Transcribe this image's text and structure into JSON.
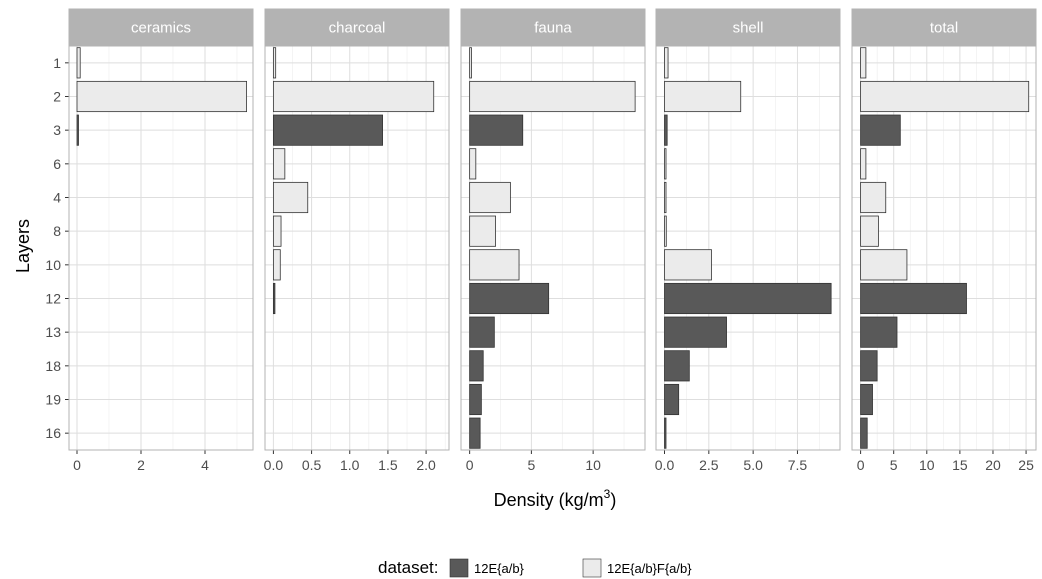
{
  "chart_data": {
    "type": "bar",
    "orientation": "horizontal",
    "ylabel": "Layers",
    "xlabel_parts": {
      "main": "Density (kg/m",
      "sup": "3",
      "end": ")"
    },
    "categories": [
      "1",
      "2",
      "3",
      "6",
      "4",
      "8",
      "10",
      "12",
      "13",
      "18",
      "19",
      "16"
    ],
    "legend": {
      "title": "dataset:",
      "placement": "bottom",
      "entries": [
        {
          "label": "12E{a/b}",
          "color": "#595959"
        },
        {
          "label": "12E{a/b}F{a/b}",
          "color": "#ebebeb"
        }
      ]
    },
    "series_by_category": [
      "12E{a/b}F{a/b}",
      "12E{a/b}F{a/b}",
      "12E{a/b}",
      "12E{a/b}F{a/b}",
      "12E{a/b}F{a/b}",
      "12E{a/b}F{a/b}",
      "12E{a/b}F{a/b}",
      "12E{a/b}",
      "12E{a/b}",
      "12E{a/b}",
      "12E{a/b}",
      "12E{a/b}"
    ],
    "grid": true,
    "panels": [
      {
        "strip": "ceramics",
        "xlim": [
          -0.25,
          5.5
        ],
        "ticks": [
          0,
          2,
          4
        ],
        "tick_labels": [
          "0",
          "2",
          "4"
        ],
        "values": [
          0.1,
          5.3,
          0.03,
          0,
          0,
          0,
          0,
          0,
          0,
          0,
          0,
          0
        ]
      },
      {
        "strip": "charcoal",
        "xlim": [
          -0.11,
          2.3
        ],
        "ticks": [
          0,
          0.5,
          1.0,
          1.5,
          2.0
        ],
        "tick_labels": [
          "0.0",
          "0.5",
          "1.0",
          "1.5",
          "2.0"
        ],
        "values": [
          0.03,
          2.1,
          1.43,
          0.15,
          0.45,
          0.1,
          0.09,
          0.02,
          0,
          0,
          0,
          0
        ]
      },
      {
        "strip": "fauna",
        "xlim": [
          -0.7,
          14.2
        ],
        "ticks": [
          0,
          5,
          10
        ],
        "tick_labels": [
          "0",
          "5",
          "10"
        ],
        "values": [
          0.15,
          13.4,
          4.3,
          0.5,
          3.3,
          2.1,
          4.0,
          6.4,
          2.0,
          1.1,
          0.95,
          0.85
        ]
      },
      {
        "strip": "shell",
        "xlim": [
          -0.48,
          9.9
        ],
        "ticks": [
          0,
          2.5,
          5.0,
          7.5
        ],
        "tick_labels": [
          "0.0",
          "2.5",
          "5.0",
          "7.5"
        ],
        "values": [
          0.2,
          4.3,
          0.15,
          0.05,
          0.05,
          0.1,
          2.65,
          9.4,
          3.5,
          1.4,
          0.8,
          0.05
        ]
      },
      {
        "strip": "total",
        "xlim": [
          -1.3,
          26.5
        ],
        "ticks": [
          0,
          5,
          10,
          15,
          20,
          25
        ],
        "tick_labels": [
          "0",
          "5",
          "10",
          "15",
          "20",
          "25"
        ],
        "values": [
          0.8,
          25.4,
          6.0,
          0.8,
          3.8,
          2.7,
          7.0,
          16.0,
          5.5,
          2.5,
          1.8,
          1.0
        ]
      }
    ]
  }
}
